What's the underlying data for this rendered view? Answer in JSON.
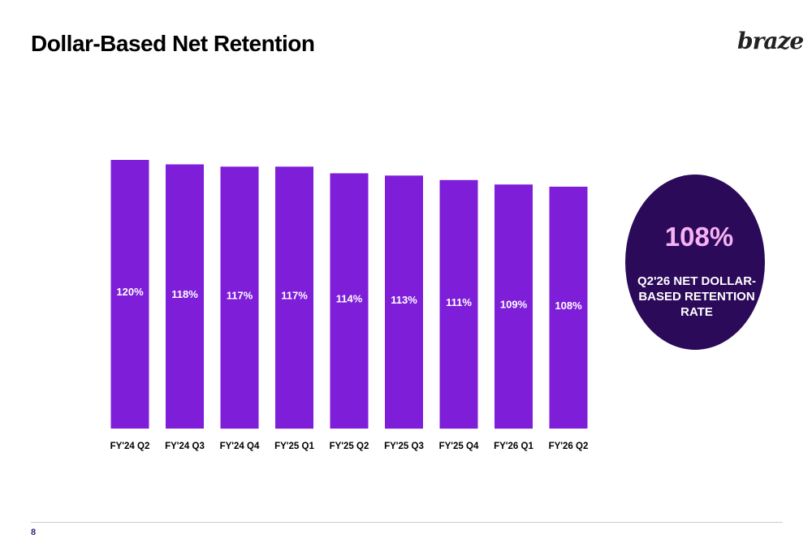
{
  "page": {
    "title": "Dollar-Based Net Retention",
    "logo_text": "braze",
    "page_number": "8"
  },
  "colors": {
    "bar": "#7e1ed9",
    "callout_bg": "#2b0a59",
    "callout_value": "#f7b2f2",
    "callout_text": "#ffffff"
  },
  "callout": {
    "value": "108%",
    "lines": [
      "Q2'26 NET DOLLAR-",
      "BASED RETENTION",
      "RATE"
    ]
  },
  "chart_data": {
    "type": "bar",
    "categories": [
      "FY'24 Q2",
      "FY'24 Q3",
      "FY'24 Q4",
      "FY'25 Q1",
      "FY'25 Q2",
      "FY'25 Q3",
      "FY'25 Q4",
      "FY'26 Q1",
      "FY'26 Q2"
    ],
    "values": [
      120,
      118,
      117,
      117,
      114,
      113,
      111,
      109,
      108
    ],
    "value_labels": [
      "120%",
      "118%",
      "117%",
      "117%",
      "114%",
      "113%",
      "111%",
      "109%",
      "108%"
    ],
    "title": "",
    "xlabel": "",
    "ylabel": "",
    "grid": false,
    "legend": "none"
  }
}
